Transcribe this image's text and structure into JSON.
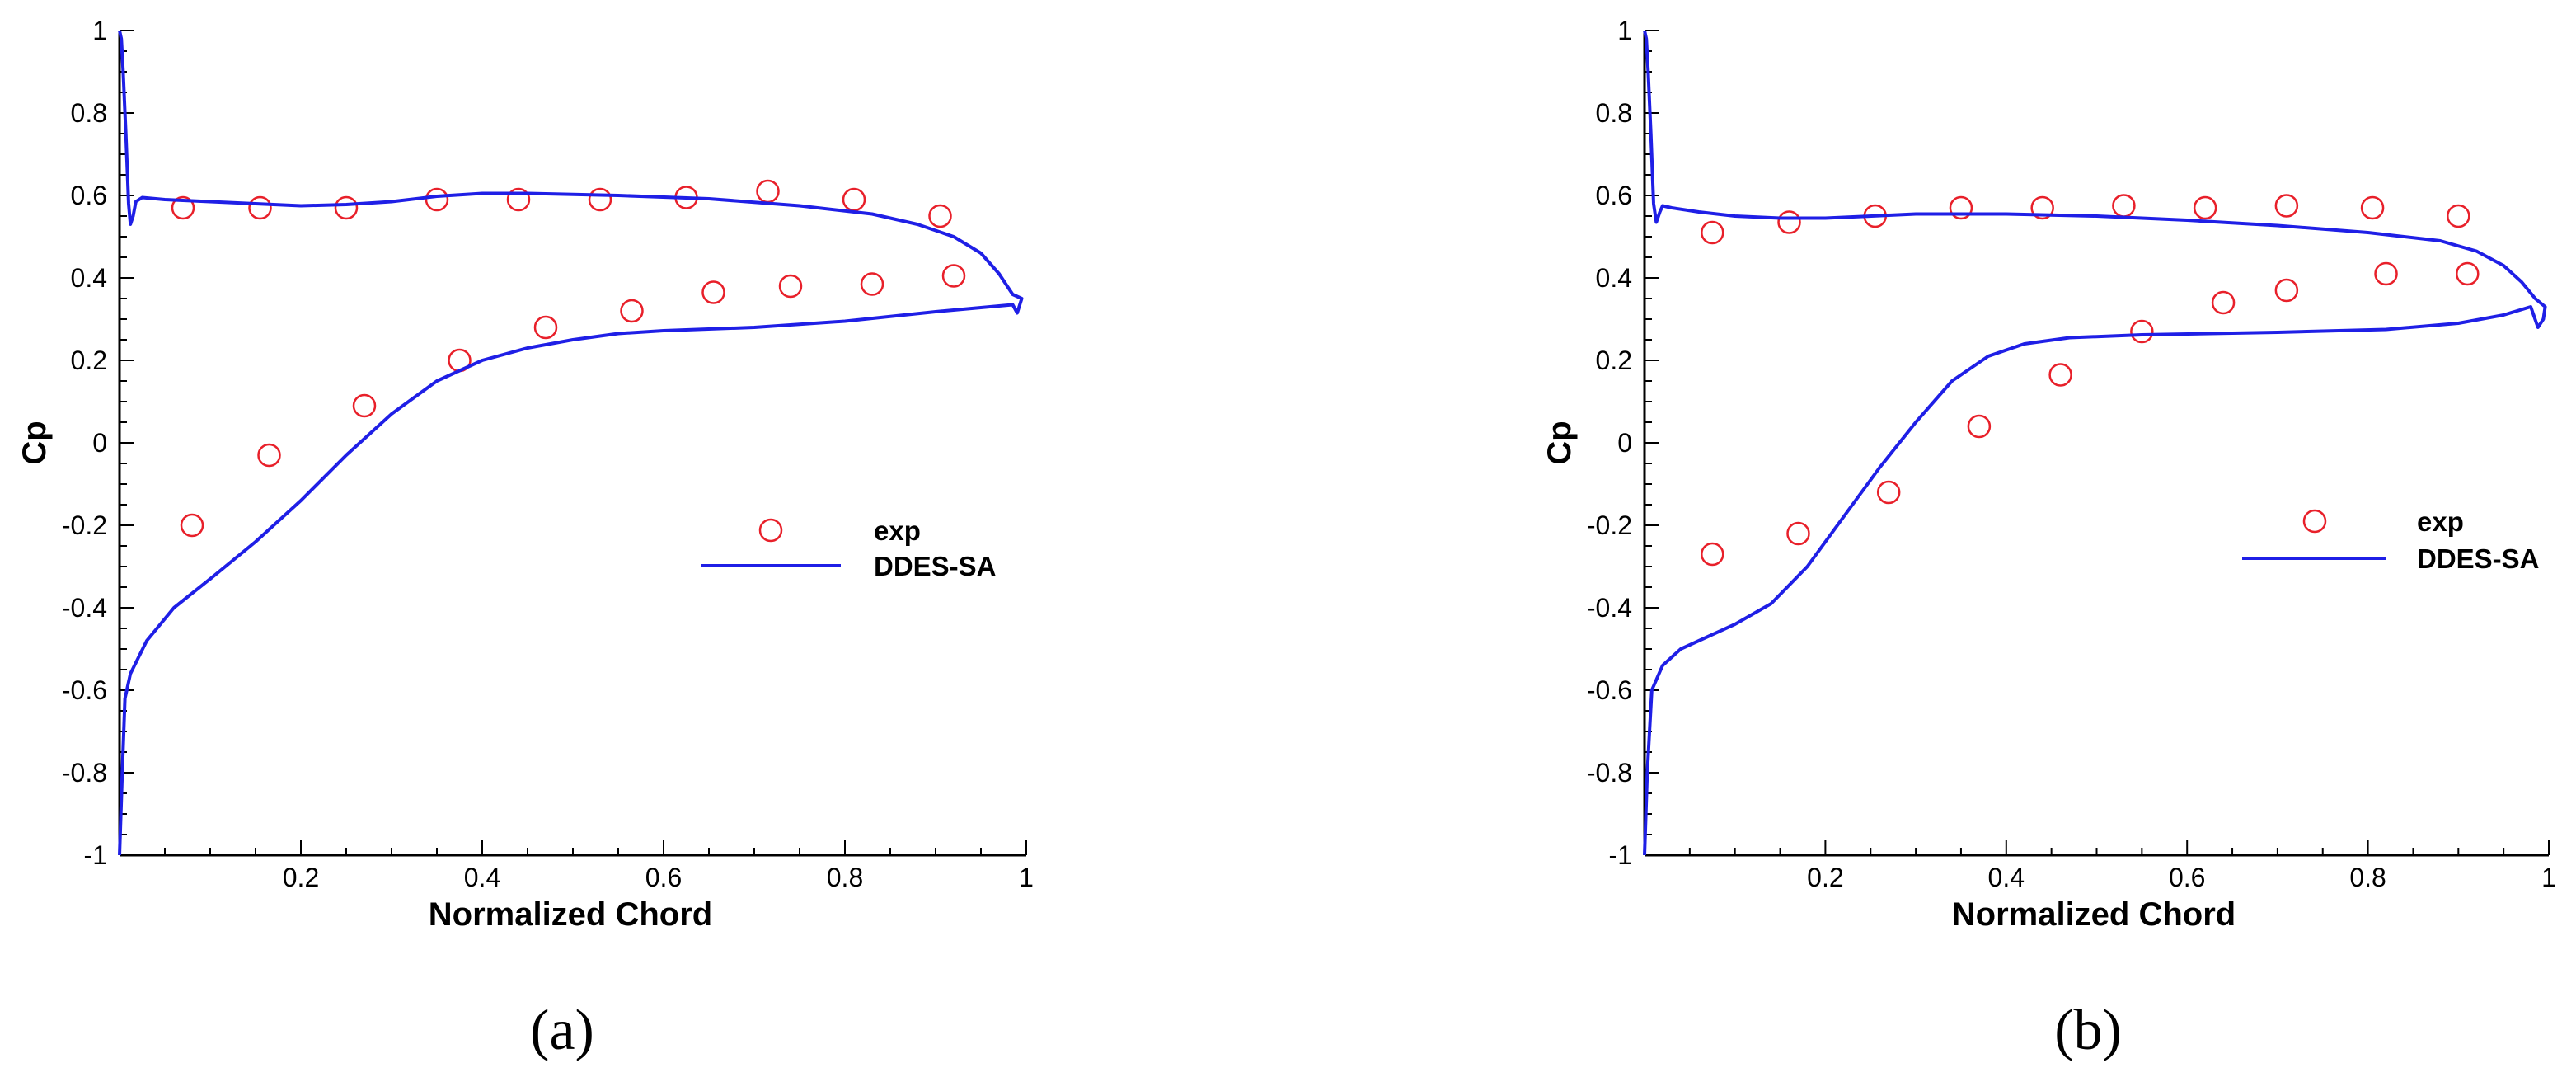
{
  "chart_data": [
    {
      "type": "line",
      "panel_label": "(a)",
      "xlabel": "Normalized Chord",
      "ylabel": "Cp",
      "xlim": [
        0,
        1
      ],
      "ylim": [
        -1,
        1
      ],
      "xticks": [
        {
          "value": 0.2,
          "label": "0.2"
        },
        {
          "value": 0.4,
          "label": "0.4"
        },
        {
          "value": 0.6,
          "label": "0.6"
        },
        {
          "value": 0.8,
          "label": "0.8"
        },
        {
          "value": 1.0,
          "label": "1"
        }
      ],
      "yticks": [
        {
          "value": -1.0,
          "label": "-1"
        },
        {
          "value": -0.8,
          "label": "-0.8"
        },
        {
          "value": -0.6,
          "label": "-0.6"
        },
        {
          "value": -0.4,
          "label": "-0.4"
        },
        {
          "value": -0.2,
          "label": "-0.2"
        },
        {
          "value": 0.0,
          "label": "0"
        },
        {
          "value": 0.2,
          "label": "0.2"
        },
        {
          "value": 0.4,
          "label": "0.4"
        },
        {
          "value": 0.6,
          "label": "0.6"
        },
        {
          "value": 0.8,
          "label": "0.8"
        },
        {
          "value": 1.0,
          "label": "1"
        }
      ],
      "grid": false,
      "legend_position": "right",
      "series": [
        {
          "name": "exp",
          "kind": "scatter",
          "marker": "open-circle",
          "color": "#e8202a",
          "points": [
            {
              "x": 0.07,
              "y": 0.57
            },
            {
              "x": 0.155,
              "y": 0.57
            },
            {
              "x": 0.25,
              "y": 0.57
            },
            {
              "x": 0.35,
              "y": 0.59
            },
            {
              "x": 0.44,
              "y": 0.59
            },
            {
              "x": 0.53,
              "y": 0.59
            },
            {
              "x": 0.625,
              "y": 0.595
            },
            {
              "x": 0.715,
              "y": 0.61
            },
            {
              "x": 0.81,
              "y": 0.59
            },
            {
              "x": 0.905,
              "y": 0.55
            },
            {
              "x": 0.08,
              "y": -0.2
            },
            {
              "x": 0.165,
              "y": -0.03
            },
            {
              "x": 0.27,
              "y": 0.09
            },
            {
              "x": 0.375,
              "y": 0.2
            },
            {
              "x": 0.47,
              "y": 0.28
            },
            {
              "x": 0.565,
              "y": 0.32
            },
            {
              "x": 0.655,
              "y": 0.365
            },
            {
              "x": 0.74,
              "y": 0.38
            },
            {
              "x": 0.83,
              "y": 0.385
            },
            {
              "x": 0.92,
              "y": 0.405
            }
          ]
        },
        {
          "name": "DDES-SA",
          "kind": "line",
          "color": "#1f1fe6",
          "points": [
            {
              "x": 0.0,
              "y": -1.0
            },
            {
              "x": 0.003,
              "y": -0.8
            },
            {
              "x": 0.006,
              "y": -0.62
            },
            {
              "x": 0.012,
              "y": -0.56
            },
            {
              "x": 0.03,
              "y": -0.48
            },
            {
              "x": 0.06,
              "y": -0.4
            },
            {
              "x": 0.1,
              "y": -0.33
            },
            {
              "x": 0.15,
              "y": -0.24
            },
            {
              "x": 0.2,
              "y": -0.14
            },
            {
              "x": 0.25,
              "y": -0.03
            },
            {
              "x": 0.3,
              "y": 0.07
            },
            {
              "x": 0.35,
              "y": 0.15
            },
            {
              "x": 0.4,
              "y": 0.2
            },
            {
              "x": 0.45,
              "y": 0.23
            },
            {
              "x": 0.5,
              "y": 0.25
            },
            {
              "x": 0.55,
              "y": 0.265
            },
            {
              "x": 0.6,
              "y": 0.272
            },
            {
              "x": 0.7,
              "y": 0.28
            },
            {
              "x": 0.8,
              "y": 0.295
            },
            {
              "x": 0.9,
              "y": 0.318
            },
            {
              "x": 0.96,
              "y": 0.33
            },
            {
              "x": 0.985,
              "y": 0.335
            },
            {
              "x": 0.99,
              "y": 0.315
            },
            {
              "x": 0.995,
              "y": 0.35
            },
            {
              "x": 0.985,
              "y": 0.36
            },
            {
              "x": 0.97,
              "y": 0.41
            },
            {
              "x": 0.95,
              "y": 0.46
            },
            {
              "x": 0.92,
              "y": 0.5
            },
            {
              "x": 0.88,
              "y": 0.53
            },
            {
              "x": 0.83,
              "y": 0.555
            },
            {
              "x": 0.75,
              "y": 0.575
            },
            {
              "x": 0.65,
              "y": 0.592
            },
            {
              "x": 0.55,
              "y": 0.6
            },
            {
              "x": 0.45,
              "y": 0.605
            },
            {
              "x": 0.4,
              "y": 0.605
            },
            {
              "x": 0.35,
              "y": 0.598
            },
            {
              "x": 0.3,
              "y": 0.585
            },
            {
              "x": 0.25,
              "y": 0.578
            },
            {
              "x": 0.2,
              "y": 0.575
            },
            {
              "x": 0.15,
              "y": 0.58
            },
            {
              "x": 0.1,
              "y": 0.585
            },
            {
              "x": 0.05,
              "y": 0.59
            },
            {
              "x": 0.025,
              "y": 0.595
            },
            {
              "x": 0.018,
              "y": 0.585
            },
            {
              "x": 0.015,
              "y": 0.55
            },
            {
              "x": 0.012,
              "y": 0.53
            },
            {
              "x": 0.01,
              "y": 0.58
            },
            {
              "x": 0.007,
              "y": 0.75
            },
            {
              "x": 0.004,
              "y": 0.9
            },
            {
              "x": 0.002,
              "y": 0.98
            },
            {
              "x": 0.0,
              "y": 1.0
            }
          ]
        }
      ]
    },
    {
      "type": "line",
      "panel_label": "(b)",
      "xlabel": "Normalized Chord",
      "ylabel": "Cp",
      "xlim": [
        0,
        1
      ],
      "ylim": [
        -1,
        1
      ],
      "xticks": [
        {
          "value": 0.2,
          "label": "0.2"
        },
        {
          "value": 0.4,
          "label": "0.4"
        },
        {
          "value": 0.6,
          "label": "0.6"
        },
        {
          "value": 0.8,
          "label": "0.8"
        },
        {
          "value": 1.0,
          "label": "1"
        }
      ],
      "yticks": [
        {
          "value": -1.0,
          "label": "-1"
        },
        {
          "value": -0.8,
          "label": "-0.8"
        },
        {
          "value": -0.6,
          "label": "-0.6"
        },
        {
          "value": -0.4,
          "label": "-0.4"
        },
        {
          "value": -0.2,
          "label": "-0.2"
        },
        {
          "value": 0.0,
          "label": "0"
        },
        {
          "value": 0.2,
          "label": "0.2"
        },
        {
          "value": 0.4,
          "label": "0.4"
        },
        {
          "value": 0.6,
          "label": "0.6"
        },
        {
          "value": 0.8,
          "label": "0.8"
        },
        {
          "value": 1.0,
          "label": "1"
        }
      ],
      "grid": false,
      "legend_position": "right",
      "series": [
        {
          "name": "exp",
          "kind": "scatter",
          "marker": "open-circle",
          "color": "#e8202a",
          "points": [
            {
              "x": 0.075,
              "y": 0.51
            },
            {
              "x": 0.16,
              "y": 0.535
            },
            {
              "x": 0.255,
              "y": 0.55
            },
            {
              "x": 0.35,
              "y": 0.57
            },
            {
              "x": 0.44,
              "y": 0.57
            },
            {
              "x": 0.53,
              "y": 0.575
            },
            {
              "x": 0.62,
              "y": 0.57
            },
            {
              "x": 0.71,
              "y": 0.575
            },
            {
              "x": 0.805,
              "y": 0.57
            },
            {
              "x": 0.9,
              "y": 0.55
            },
            {
              "x": 0.075,
              "y": -0.27
            },
            {
              "x": 0.17,
              "y": -0.22
            },
            {
              "x": 0.27,
              "y": -0.12
            },
            {
              "x": 0.37,
              "y": 0.04
            },
            {
              "x": 0.46,
              "y": 0.165
            },
            {
              "x": 0.55,
              "y": 0.27
            },
            {
              "x": 0.64,
              "y": 0.34
            },
            {
              "x": 0.71,
              "y": 0.37
            },
            {
              "x": 0.82,
              "y": 0.41
            },
            {
              "x": 0.91,
              "y": 0.41
            }
          ]
        },
        {
          "name": "DDES-SA",
          "kind": "line",
          "color": "#1f1fe6",
          "points": [
            {
              "x": 0.0,
              "y": -1.0
            },
            {
              "x": 0.003,
              "y": -0.8
            },
            {
              "x": 0.008,
              "y": -0.6
            },
            {
              "x": 0.02,
              "y": -0.54
            },
            {
              "x": 0.04,
              "y": -0.5
            },
            {
              "x": 0.07,
              "y": -0.47
            },
            {
              "x": 0.1,
              "y": -0.44
            },
            {
              "x": 0.14,
              "y": -0.39
            },
            {
              "x": 0.18,
              "y": -0.3
            },
            {
              "x": 0.22,
              "y": -0.18
            },
            {
              "x": 0.26,
              "y": -0.06
            },
            {
              "x": 0.3,
              "y": 0.05
            },
            {
              "x": 0.34,
              "y": 0.15
            },
            {
              "x": 0.38,
              "y": 0.21
            },
            {
              "x": 0.42,
              "y": 0.24
            },
            {
              "x": 0.47,
              "y": 0.255
            },
            {
              "x": 0.55,
              "y": 0.262
            },
            {
              "x": 0.7,
              "y": 0.268
            },
            {
              "x": 0.82,
              "y": 0.275
            },
            {
              "x": 0.9,
              "y": 0.29
            },
            {
              "x": 0.95,
              "y": 0.31
            },
            {
              "x": 0.98,
              "y": 0.33
            },
            {
              "x": 0.988,
              "y": 0.28
            },
            {
              "x": 0.994,
              "y": 0.3
            },
            {
              "x": 0.996,
              "y": 0.33
            },
            {
              "x": 0.985,
              "y": 0.35
            },
            {
              "x": 0.97,
              "y": 0.39
            },
            {
              "x": 0.95,
              "y": 0.43
            },
            {
              "x": 0.92,
              "y": 0.465
            },
            {
              "x": 0.88,
              "y": 0.49
            },
            {
              "x": 0.8,
              "y": 0.51
            },
            {
              "x": 0.7,
              "y": 0.527
            },
            {
              "x": 0.6,
              "y": 0.54
            },
            {
              "x": 0.5,
              "y": 0.55
            },
            {
              "x": 0.4,
              "y": 0.555
            },
            {
              "x": 0.3,
              "y": 0.555
            },
            {
              "x": 0.2,
              "y": 0.545
            },
            {
              "x": 0.15,
              "y": 0.545
            },
            {
              "x": 0.1,
              "y": 0.55
            },
            {
              "x": 0.06,
              "y": 0.56
            },
            {
              "x": 0.03,
              "y": 0.57
            },
            {
              "x": 0.02,
              "y": 0.575
            },
            {
              "x": 0.017,
              "y": 0.56
            },
            {
              "x": 0.013,
              "y": 0.535
            },
            {
              "x": 0.01,
              "y": 0.58
            },
            {
              "x": 0.007,
              "y": 0.75
            },
            {
              "x": 0.004,
              "y": 0.9
            },
            {
              "x": 0.002,
              "y": 0.98
            },
            {
              "x": 0.0,
              "y": 1.0
            }
          ]
        }
      ]
    }
  ]
}
